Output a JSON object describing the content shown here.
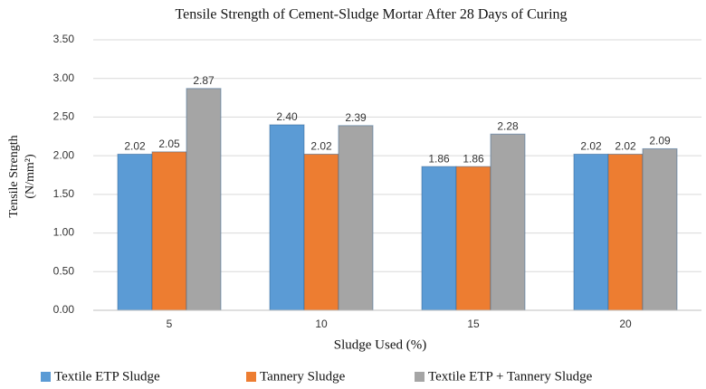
{
  "chart_data": {
    "type": "bar",
    "title": "Tensile Strength of Cement-Sludge Mortar After 28 Days of Curing",
    "x_label": "Sludge Used (%)",
    "y_label": [
      "Tensile Strength",
      "(N/mm²)"
    ],
    "categories": [
      "5",
      "10",
      "15",
      "20"
    ],
    "series": [
      {
        "name": "Textile ETP Sludge",
        "color": "#5b9bd5",
        "values": [
          2.02,
          2.4,
          1.86,
          2.02
        ],
        "value_labels": [
          "2.02",
          "2.40",
          "1.86",
          "2.02"
        ]
      },
      {
        "name": "Tannery Sludge",
        "color": "#ed7d31",
        "values": [
          2.05,
          2.02,
          1.86,
          2.02
        ],
        "value_labels": [
          "2.05",
          "2.02",
          "1.86",
          "2.02"
        ]
      },
      {
        "name": "Textile ETP + Tannery Sludge",
        "color": "#a5a5a5",
        "values": [
          2.87,
          2.39,
          2.28,
          2.09
        ],
        "value_labels": [
          "2.87",
          "2.39",
          "2.28",
          "2.09"
        ]
      }
    ],
    "ylim": [
      0,
      3.5
    ],
    "yticks": [
      {
        "value": 0,
        "label": "0.00"
      },
      {
        "value": 0.5,
        "label": "0.50"
      },
      {
        "value": 1,
        "label": "1.00"
      },
      {
        "value": 1.5,
        "label": "1.50"
      },
      {
        "value": 2,
        "label": "2.00"
      },
      {
        "value": 2.5,
        "label": "2.50"
      },
      {
        "value": 3,
        "label": "3.00"
      },
      {
        "value": 3.5,
        "label": "3.50"
      }
    ],
    "grid": true,
    "legend": "bottom"
  }
}
